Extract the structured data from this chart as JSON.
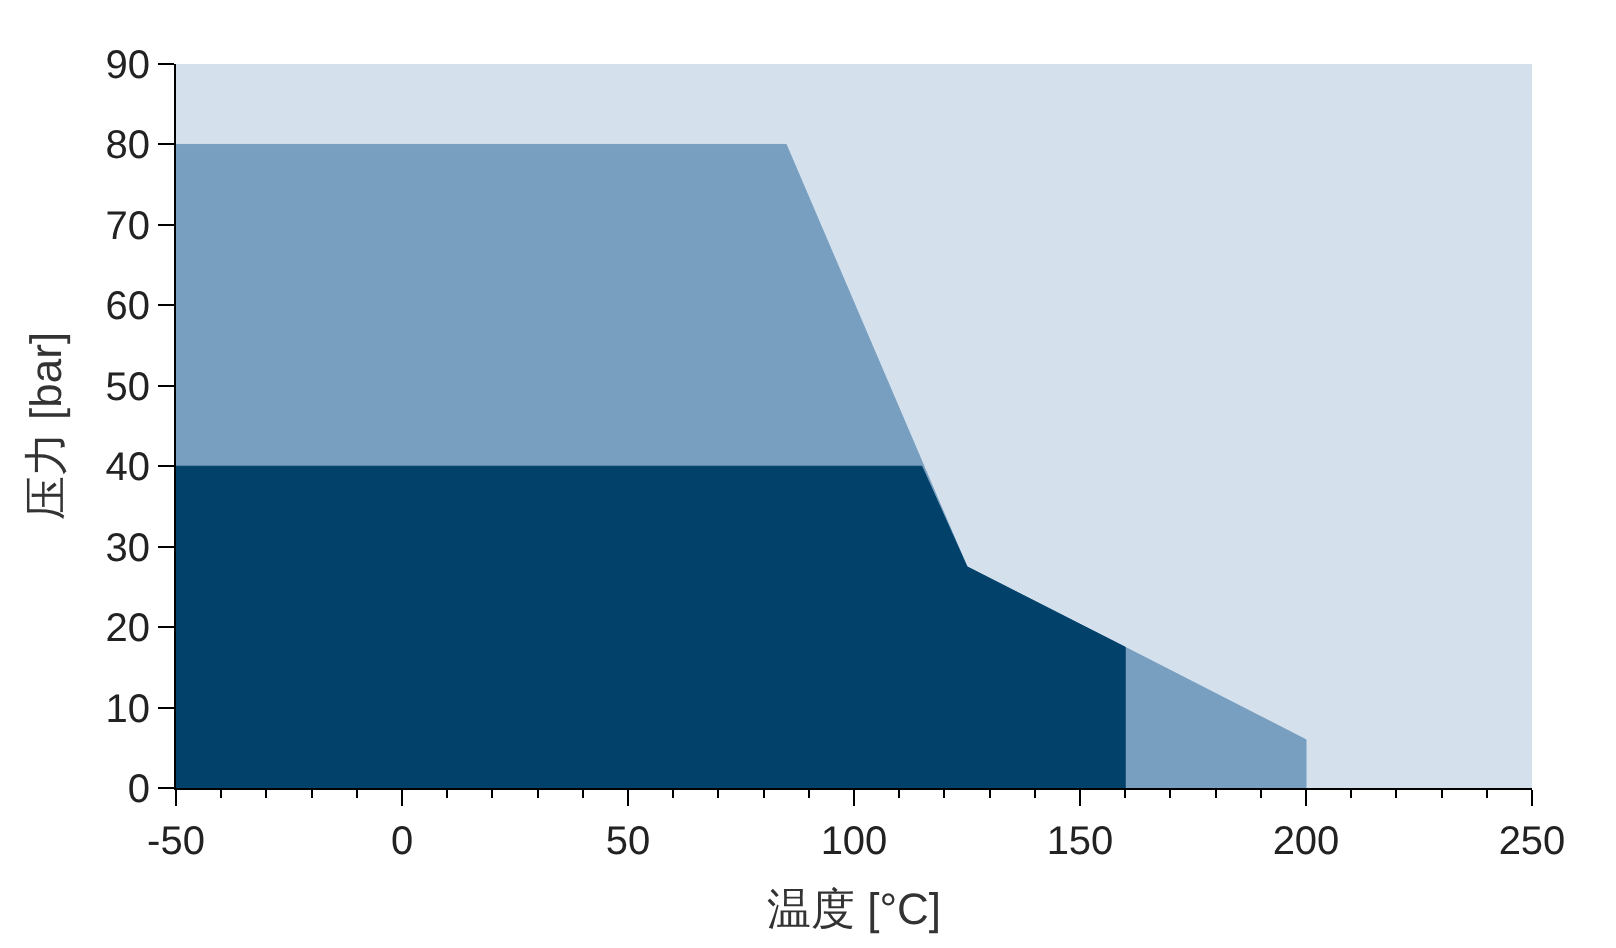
{
  "chart_data": {
    "type": "area",
    "xlabel": "温度 [°C]",
    "ylabel": "压力 [bar]",
    "xlim": [
      -50,
      250
    ],
    "ylim": [
      0,
      90
    ],
    "xticks": [
      -50,
      {
        "value": -40,
        "label": null
      },
      {
        "value": -30,
        "label": null
      },
      {
        "value": -20,
        "label": null
      },
      {
        "value": -10,
        "label": null
      },
      0,
      {
        "value": 10,
        "label": null
      },
      {
        "value": 20,
        "label": null
      },
      {
        "value": 30,
        "label": null
      },
      {
        "value": 40,
        "label": null
      },
      50,
      {
        "value": 60,
        "label": null
      },
      {
        "value": 70,
        "label": null
      },
      {
        "value": 80,
        "label": null
      },
      {
        "value": 90,
        "label": null
      },
      100,
      {
        "value": 110,
        "label": null
      },
      {
        "value": 120,
        "label": null
      },
      {
        "value": 130,
        "label": null
      },
      {
        "value": 140,
        "label": null
      },
      150,
      {
        "value": 160,
        "label": null
      },
      {
        "value": 170,
        "label": null
      },
      {
        "value": 180,
        "label": null
      },
      {
        "value": 190,
        "label": null
      },
      200,
      {
        "value": 210,
        "label": null
      },
      {
        "value": 220,
        "label": null
      },
      {
        "value": 230,
        "label": null
      },
      {
        "value": 240,
        "label": null
      },
      250
    ],
    "yticks": [
      0,
      10,
      20,
      30,
      40,
      50,
      60,
      70,
      80,
      90
    ],
    "grid": false,
    "series": [
      {
        "color": "#789fc0",
        "x": [
          -50,
          85,
          125,
          160,
          200,
          200
        ],
        "values": [
          80,
          80,
          27.5,
          17.5,
          6,
          0
        ]
      },
      {
        "color": "#02416a",
        "x": [
          -50,
          115,
          125,
          160,
          160
        ],
        "values": [
          40,
          40,
          27.5,
          17.5,
          0
        ]
      }
    ]
  }
}
